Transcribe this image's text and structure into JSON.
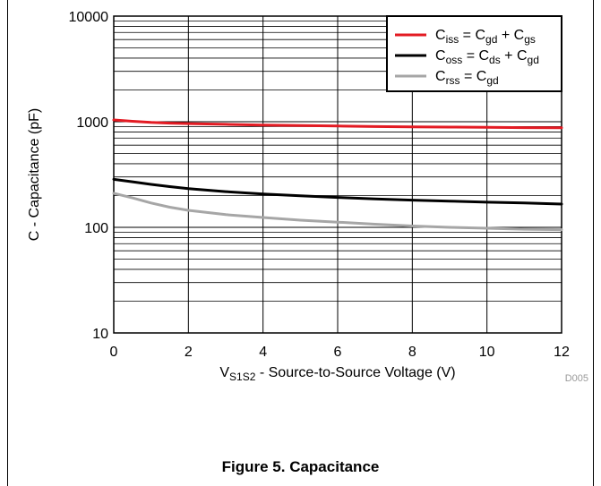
{
  "figure_title": "Figure 5. Capacitance",
  "figure_id": "D005",
  "chart_data": {
    "type": "line",
    "title": "",
    "xlabel": "V",
    "xlabel_sub": "S1S2",
    "xlabel_rest": " - Source-to-Source Voltage (V)",
    "ylabel": "C - Capacitance (pF)",
    "xlim": [
      0,
      12
    ],
    "ylim": [
      10,
      10000
    ],
    "yscale": "log",
    "grid": true,
    "legend_position": "top-right",
    "x_ticks": [
      0,
      2,
      4,
      6,
      8,
      10,
      12
    ],
    "y_ticks": [
      10,
      100,
      1000,
      10000
    ],
    "series": [
      {
        "name": "Ciss = Cgd + Cgs",
        "color": "#e31b23",
        "legend_parts": [
          [
            "C",
            ""
          ],
          [
            "iss",
            "sub"
          ],
          [
            " = C",
            ""
          ],
          [
            "gd",
            "sub"
          ],
          [
            " + C",
            ""
          ],
          [
            "gs",
            "sub"
          ]
        ],
        "x": [
          0,
          0.5,
          1,
          1.5,
          2,
          3,
          4,
          5,
          6,
          7,
          8,
          9,
          10,
          11,
          12
        ],
        "y": [
          1040,
          1010,
          985,
          970,
          960,
          945,
          930,
          920,
          910,
          900,
          895,
          890,
          885,
          880,
          878
        ]
      },
      {
        "name": "Coss = Cds + Cgd",
        "color": "#000000",
        "legend_parts": [
          [
            "C",
            ""
          ],
          [
            "oss",
            "sub"
          ],
          [
            " = C",
            ""
          ],
          [
            "ds",
            "sub"
          ],
          [
            " + C",
            ""
          ],
          [
            "gd",
            "sub"
          ]
        ],
        "x": [
          0,
          0.5,
          1,
          1.5,
          2,
          3,
          4,
          5,
          6,
          7,
          8,
          9,
          10,
          11,
          12
        ],
        "y": [
          285,
          270,
          255,
          243,
          233,
          218,
          207,
          199,
          192,
          186,
          181,
          177,
          173,
          170,
          166
        ]
      },
      {
        "name": "Crss = Cgd",
        "color": "#a6a6a6",
        "legend_parts": [
          [
            "C",
            ""
          ],
          [
            "rss",
            "sub"
          ],
          [
            " = C",
            ""
          ],
          [
            "gd",
            "sub"
          ]
        ],
        "x": [
          0,
          0.5,
          1,
          1.5,
          2,
          3,
          4,
          5,
          6,
          7,
          8,
          9,
          10,
          11,
          12
        ],
        "y": [
          210,
          190,
          170,
          155,
          145,
          132,
          124,
          117,
          112,
          107,
          103,
          100,
          98,
          96,
          95
        ]
      }
    ]
  }
}
